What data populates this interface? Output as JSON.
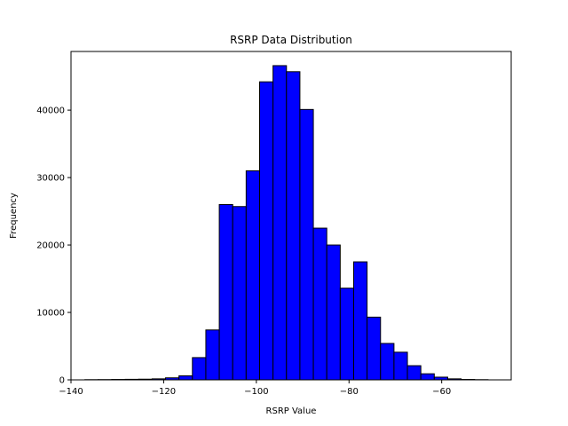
{
  "chart_data": {
    "type": "bar",
    "title": "RSRP Data Distribution",
    "xlabel": "RSRP Value",
    "ylabel": "Frequency",
    "xlim": [
      -140,
      -45
    ],
    "ylim": [
      0,
      48700
    ],
    "x_ticks": [
      -140,
      -120,
      -100,
      -80,
      -60
    ],
    "y_ticks": [
      0,
      10000,
      20000,
      30000,
      40000
    ],
    "bar_color": "#0000ff",
    "edge_color": "#000000",
    "bin_edges": [
      -137,
      -134.1,
      -131.2,
      -128.3,
      -125.4,
      -122.5,
      -119.6,
      -116.7,
      -113.8,
      -110.9,
      -108,
      -105.1,
      -102.2,
      -99.3,
      -96.4,
      -93.5,
      -90.6,
      -87.7,
      -84.8,
      -81.9,
      -79,
      -76.1,
      -73.2,
      -70.3,
      -67.4,
      -64.5,
      -61.6,
      -58.7,
      -55.8,
      -52.9,
      -50
    ],
    "values": [
      30,
      40,
      60,
      80,
      100,
      150,
      300,
      600,
      3300,
      7400,
      26000,
      25700,
      31000,
      44200,
      46600,
      45700,
      40100,
      22500,
      20000,
      13600,
      17500,
      9300,
      5400,
      4100,
      2100,
      900,
      400,
      150,
      60,
      30
    ],
    "grid": false,
    "legend": "none"
  }
}
